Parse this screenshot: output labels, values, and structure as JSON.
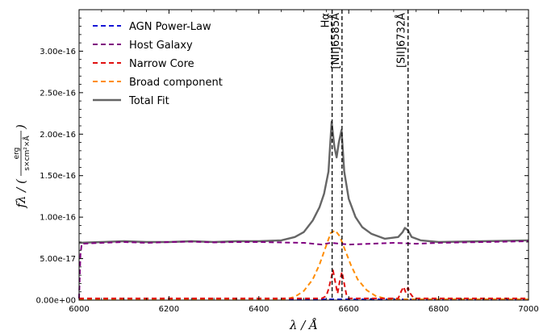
{
  "chart_data": {
    "type": "line",
    "xlabel": "λ / Å",
    "ylabel": "fλ / (erg / (s×cm²×Å))",
    "ylabel_parts": {
      "prefix": "fλ / (",
      "num": "erg",
      "den": "s×cm²×Å",
      "suffix": ")"
    },
    "xlim": [
      6000,
      7000
    ],
    "ylim": [
      0,
      3.5e-16
    ],
    "x_ticks": [
      6000,
      6200,
      6400,
      6600,
      6800,
      7000
    ],
    "x_tick_labels": [
      "6000",
      "6200",
      "6400",
      "6600",
      "6800",
      "7000"
    ],
    "y_ticks": [
      0,
      5e-17,
      1e-16,
      1.5e-16,
      2e-16,
      2.5e-16,
      3e-16
    ],
    "y_tick_labels": [
      "0.00e+00",
      "5.00e-17",
      "1.00e-16",
      "1.50e-16",
      "2.00e-16",
      "2.50e-16",
      "3.00e-16"
    ],
    "grid": false,
    "legend_position": "top-left",
    "series": [
      {
        "name": "AGN Power-Law",
        "color": "#1515d6",
        "style": "dashed",
        "x": [
          6000,
          7000
        ],
        "y": [
          1e-18,
          1e-18
        ]
      },
      {
        "name": "Host Galaxy",
        "color": "#800080",
        "style": "dashed",
        "x": [
          6000,
          6003,
          6006,
          6050,
          6100,
          6150,
          6200,
          6250,
          6300,
          6350,
          6400,
          6450,
          6500,
          6540,
          6560,
          6580,
          6600,
          6650,
          6700,
          6750,
          6800,
          6850,
          6900,
          6950,
          7000
        ],
        "y": [
          2e-18,
          5.5e-17,
          6.8e-17,
          6.9e-17,
          7e-17,
          6.9e-17,
          7e-17,
          7.05e-17,
          6.95e-17,
          7e-17,
          7e-17,
          6.95e-17,
          6.9e-17,
          6.7e-17,
          6.9e-17,
          6.8e-17,
          6.7e-17,
          6.8e-17,
          6.9e-17,
          6.8e-17,
          6.9e-17,
          6.95e-17,
          7e-17,
          7.05e-17,
          7.1e-17
        ]
      },
      {
        "name": "Narrow Core",
        "color": "#e01010",
        "style": "dashed",
        "x": [
          6000,
          6540,
          6550,
          6555,
          6560,
          6565,
          6570,
          6575,
          6580,
          6585,
          6590,
          6595,
          6600,
          6710,
          6717,
          6722,
          6727,
          6732,
          6737,
          6745,
          7000
        ],
        "y": [
          2e-18,
          2e-18,
          5e-18,
          1.3e-17,
          2.4e-17,
          3.6e-17,
          2.2e-17,
          8e-18,
          2.3e-17,
          3.4e-17,
          2e-17,
          6e-18,
          2e-18,
          2e-18,
          1.1e-17,
          1.6e-17,
          9e-18,
          1.5e-17,
          8e-18,
          2e-18,
          2e-18
        ]
      },
      {
        "name": "Broad component",
        "color": "#ff8c00",
        "style": "dashed",
        "x": [
          6000,
          6460,
          6480,
          6500,
          6520,
          6535,
          6550,
          6560,
          6570,
          6580,
          6590,
          6605,
          6620,
          6640,
          6660,
          6680,
          6700,
          7000
        ],
        "y": [
          1e-18,
          1e-18,
          4e-18,
          1.1e-17,
          2.5e-17,
          4.3e-17,
          6.6e-17,
          8.1e-17,
          8.4e-17,
          7.7e-17,
          6.3e-17,
          4.2e-17,
          2.5e-17,
          1.2e-17,
          5e-18,
          2e-18,
          1e-18,
          1e-18
        ]
      },
      {
        "name": "Total Fit",
        "color": "#666666",
        "style": "solid",
        "x": [
          6000,
          6050,
          6100,
          6150,
          6200,
          6250,
          6300,
          6350,
          6400,
          6450,
          6480,
          6500,
          6520,
          6535,
          6545,
          6555,
          6562,
          6568,
          6573,
          6578,
          6584,
          6590,
          6600,
          6615,
          6630,
          6650,
          6680,
          6710,
          6720,
          6725,
          6732,
          6740,
          6760,
          6800,
          6900,
          7000
        ],
        "y": [
          6.9e-17,
          7e-17,
          7.1e-17,
          7e-17,
          7e-17,
          7.1e-17,
          7e-17,
          7.1e-17,
          7.1e-17,
          7.2e-17,
          7.6e-17,
          8.2e-17,
          9.6e-17,
          1.12e-16,
          1.28e-16,
          1.55e-16,
          2.15e-16,
          1.85e-16,
          1.72e-16,
          1.9e-16,
          2.05e-16,
          1.55e-16,
          1.22e-16,
          1e-16,
          8.8e-17,
          8e-17,
          7.4e-17,
          7.6e-17,
          8.2e-17,
          8.7e-17,
          8.4e-17,
          7.6e-17,
          7.2e-17,
          7e-17,
          7.1e-17,
          7.2e-17
        ]
      }
    ],
    "vlines": [
      {
        "x": 6563,
        "label": "Hα"
      },
      {
        "x": 6585,
        "label": "[NII]6585Å"
      },
      {
        "x": 6732,
        "label": "[SII]6732Å"
      }
    ]
  }
}
